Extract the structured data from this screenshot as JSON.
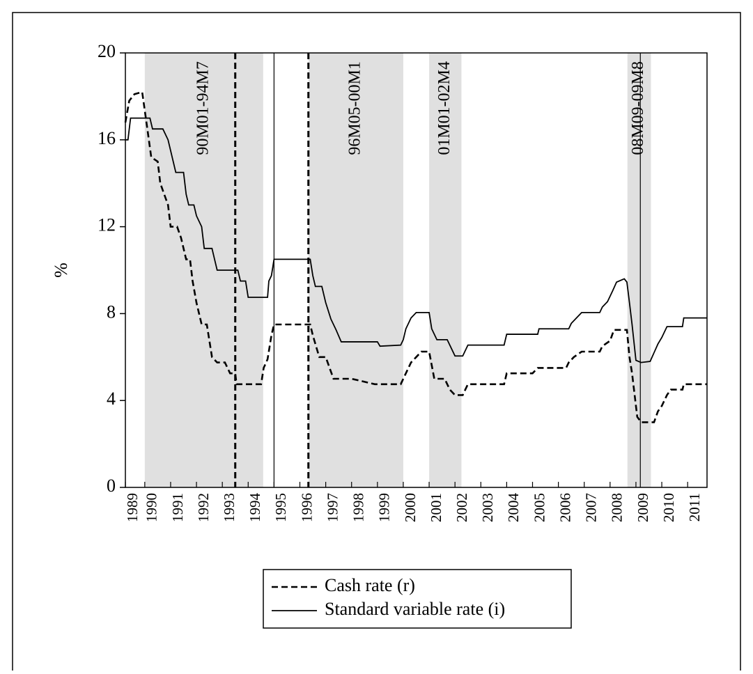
{
  "chart_data": {
    "type": "line",
    "y_label": "%",
    "xlim": [
      1989.25,
      2011.75
    ],
    "xticks": [
      {
        "value": 1989.25,
        "label": "1989"
      },
      1990,
      1991,
      1992,
      1993,
      1994,
      1995,
      1996,
      1997,
      1998,
      1999,
      2000,
      2001,
      2002,
      2003,
      2004,
      2005,
      2006,
      2007,
      2008,
      2009,
      2010,
      2011
    ],
    "ylim": [
      0,
      20
    ],
    "yticks": [
      0,
      4,
      8,
      12,
      16,
      20
    ],
    "shade_color": "#e0e0e0",
    "shaded_regions": [
      {
        "label": "90M01-94M7",
        "start": 1990.0,
        "end": 1994.58
      },
      {
        "label": "96M05-00M1",
        "start": 1996.33,
        "end": 2000.0
      },
      {
        "label": "01M01-02M4",
        "start": 2001.0,
        "end": 2002.25
      },
      {
        "label": "08M09-09M8",
        "start": 2008.67,
        "end": 2009.58
      }
    ],
    "vlines": [
      {
        "x": 1993.5,
        "style": "dashed"
      },
      {
        "x": 1995.0,
        "style": "solid"
      },
      {
        "x": 1996.33,
        "style": "dashed"
      },
      {
        "x": 2009.17,
        "style": "solid"
      }
    ],
    "series": [
      {
        "name": "Cash rate (r)",
        "color": "#000000",
        "style": "dashed",
        "x": [
          1989.25,
          1989.4,
          1989.6,
          1989.9,
          1990.1,
          1990.25,
          1990.5,
          1990.6,
          1990.9,
          1991.0,
          1991.25,
          1991.4,
          1991.6,
          1991.75,
          1991.85,
          1992.0,
          1992.2,
          1992.4,
          1992.6,
          1992.8,
          1993.1,
          1993.3,
          1993.5,
          1993.55,
          1994.5,
          1994.6,
          1994.75,
          1994.9,
          1995.0,
          1996.4,
          1996.5,
          1996.75,
          1997.0,
          1997.3,
          1998.0,
          1998.9,
          1999.9,
          2000.1,
          2000.3,
          2000.5,
          2000.7,
          2001.0,
          2001.2,
          2001.6,
          2001.8,
          2002.0,
          2002.3,
          2002.5,
          2003.9,
          2004.0,
          2005.0,
          2005.2,
          2006.3,
          2006.4,
          2006.6,
          2006.9,
          2007.6,
          2007.7,
          2008.0,
          2008.15,
          2008.65,
          2008.75,
          2008.85,
          2008.95,
          2009.05,
          2009.2,
          2009.7,
          2009.85,
          2010.0,
          2010.2,
          2010.35,
          2010.8,
          2010.85,
          2011.75
        ],
        "values": [
          16.8,
          17.8,
          18.1,
          18.2,
          16.5,
          15.2,
          15.0,
          14.0,
          13.0,
          12.0,
          12.0,
          11.5,
          10.5,
          10.5,
          9.5,
          8.5,
          7.5,
          7.5,
          6.0,
          5.75,
          5.75,
          5.25,
          5.25,
          4.75,
          4.75,
          5.5,
          5.9,
          7.0,
          7.5,
          7.5,
          7.0,
          6.0,
          6.0,
          5.0,
          5.0,
          4.75,
          4.75,
          5.25,
          5.75,
          6.0,
          6.25,
          6.25,
          5.0,
          5.0,
          4.5,
          4.25,
          4.25,
          4.75,
          4.75,
          5.25,
          5.25,
          5.5,
          5.5,
          5.75,
          6.0,
          6.25,
          6.25,
          6.5,
          6.75,
          7.25,
          7.25,
          6.0,
          5.25,
          4.25,
          3.25,
          3.0,
          3.0,
          3.5,
          3.75,
          4.25,
          4.5,
          4.5,
          4.75,
          4.75
        ]
      },
      {
        "name": "Standard variable rate (i)",
        "color": "#000000",
        "style": "solid",
        "x": [
          1989.25,
          1989.35,
          1989.45,
          1990.2,
          1990.3,
          1990.7,
          1990.9,
          1991.1,
          1991.2,
          1991.5,
          1991.6,
          1991.7,
          1991.9,
          1992.0,
          1992.2,
          1992.3,
          1992.6,
          1992.7,
          1992.8,
          1993.6,
          1993.7,
          1993.9,
          1994.0,
          1994.75,
          1994.8,
          1994.9,
          1995.0,
          1996.4,
          1996.5,
          1996.6,
          1996.85,
          1997.0,
          1997.2,
          1997.4,
          1997.6,
          1999.0,
          1999.1,
          1999.9,
          2000.0,
          2000.1,
          2000.3,
          2000.5,
          2001.0,
          2001.1,
          2001.3,
          2001.7,
          2001.9,
          2002.0,
          2002.3,
          2002.5,
          2003.9,
          2004.0,
          2005.2,
          2005.25,
          2006.4,
          2006.5,
          2006.7,
          2006.9,
          2007.6,
          2007.7,
          2007.9,
          2008.1,
          2008.25,
          2008.55,
          2008.65,
          2008.75,
          2008.85,
          2009.0,
          2009.2,
          2009.55,
          2009.7,
          2009.85,
          2010.0,
          2010.2,
          2010.8,
          2010.85,
          2011.75
        ],
        "values": [
          16.0,
          16.0,
          17.0,
          17.0,
          16.5,
          16.5,
          16.0,
          15.0,
          14.5,
          14.5,
          13.5,
          13.0,
          13.0,
          12.5,
          12.0,
          11.0,
          11.0,
          10.5,
          10.0,
          10.0,
          9.5,
          9.5,
          8.75,
          8.75,
          9.5,
          9.75,
          10.5,
          10.5,
          9.75,
          9.25,
          9.25,
          8.5,
          7.75,
          7.25,
          6.7,
          6.7,
          6.5,
          6.55,
          6.8,
          7.3,
          7.8,
          8.05,
          8.05,
          7.3,
          6.8,
          6.8,
          6.3,
          6.05,
          6.05,
          6.55,
          6.55,
          7.05,
          7.05,
          7.3,
          7.3,
          7.55,
          7.8,
          8.05,
          8.05,
          8.3,
          8.55,
          9.05,
          9.45,
          9.6,
          9.45,
          8.5,
          7.5,
          5.85,
          5.75,
          5.8,
          6.2,
          6.6,
          6.9,
          7.4,
          7.4,
          7.8,
          7.8
        ]
      }
    ]
  }
}
